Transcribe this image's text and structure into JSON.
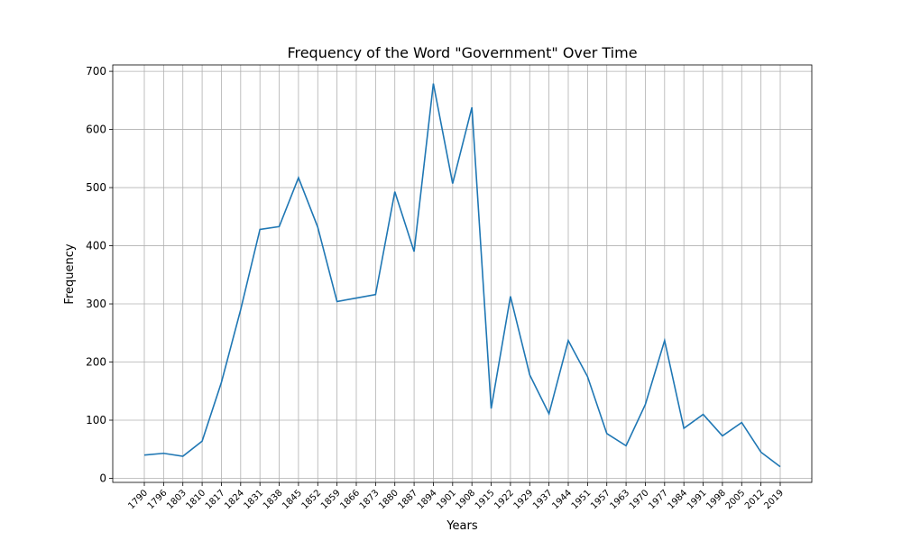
{
  "chart_data": {
    "type": "line",
    "title": "Frequency of the Word \"Government\" Over Time",
    "xlabel": "Years",
    "ylabel": "Frequency",
    "grid": true,
    "line_color": "#1f77b4",
    "ylim": [
      -7,
      711
    ],
    "yticks": [
      0,
      100,
      200,
      300,
      400,
      500,
      600,
      700
    ],
    "x": [
      "1790",
      "1796",
      "1803",
      "1810",
      "1817",
      "1824",
      "1831",
      "1838",
      "1845",
      "1852",
      "1859",
      "1866",
      "1873",
      "1880",
      "1887",
      "1894",
      "1901",
      "1908",
      "1915",
      "1922",
      "1929",
      "1937",
      "1944",
      "1951",
      "1957",
      "1963",
      "1970",
      "1977",
      "1984",
      "1991",
      "1998",
      "2005",
      "2012",
      "2019"
    ],
    "series": [
      {
        "values": [
          40,
          43,
          38,
          64,
          165,
          290,
          428,
          433,
          517,
          432,
          304,
          310,
          316,
          493,
          390,
          679,
          507,
          638,
          120,
          313,
          178,
          111,
          237,
          175,
          77,
          56,
          127,
          237,
          86,
          110,
          73,
          96,
          45,
          20
        ]
      }
    ]
  }
}
